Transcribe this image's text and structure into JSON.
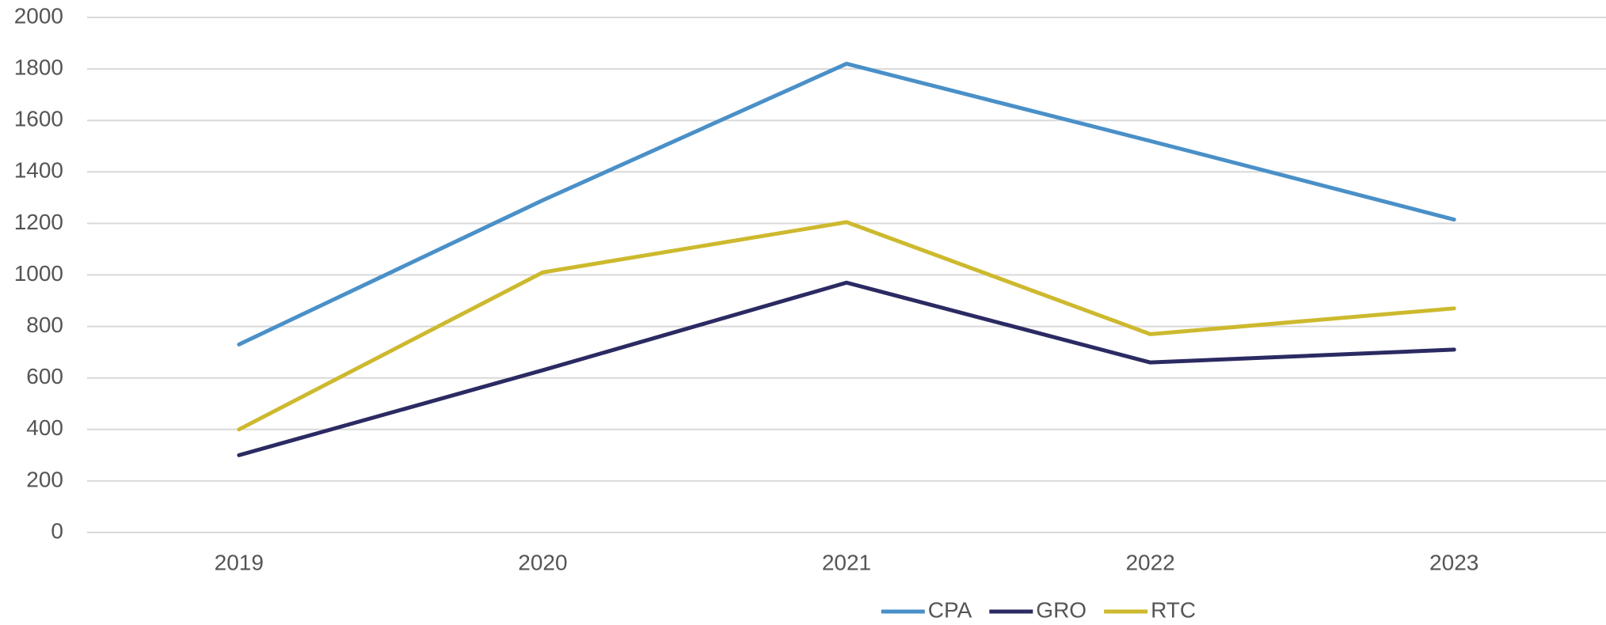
{
  "chart_data": {
    "type": "line",
    "categories": [
      "2019",
      "2020",
      "2021",
      "2022",
      "2023"
    ],
    "series": [
      {
        "name": "CPA",
        "color": "#4a90c8",
        "values": [
          730,
          1290,
          1820,
          1520,
          1215
        ]
      },
      {
        "name": "GRO",
        "color": "#2b2a62",
        "values": [
          300,
          630,
          970,
          660,
          710
        ]
      },
      {
        "name": "RTC",
        "color": "#cdb92e",
        "values": [
          400,
          1010,
          1205,
          770,
          870
        ]
      }
    ],
    "ylim": [
      0,
      2000
    ],
    "yticks": [
      0,
      200,
      400,
      600,
      800,
      1000,
      1200,
      1400,
      1600,
      1800,
      2000
    ],
    "grid": true,
    "legend": "bottom"
  }
}
